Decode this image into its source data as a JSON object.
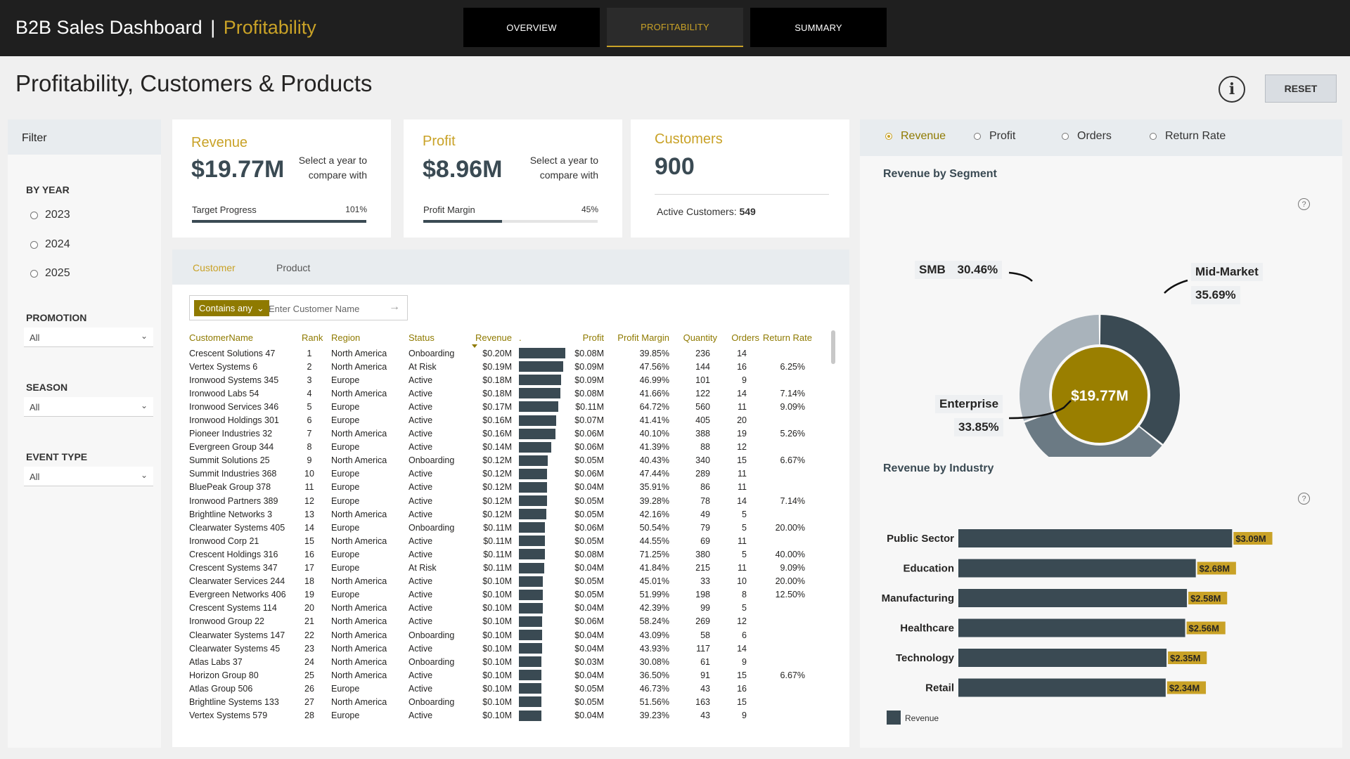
{
  "header": {
    "app_title": "B2B Sales Dashboard",
    "separator": "|",
    "page_name": "Profitability",
    "tabs": [
      {
        "label": "OVERVIEW",
        "active": false
      },
      {
        "label": "PROFITABILITY",
        "active": true
      },
      {
        "label": "SUMMARY",
        "active": false
      }
    ]
  },
  "page": {
    "title": "Profitability, Customers & Products",
    "info_icon": "i",
    "reset_label": "RESET"
  },
  "filters": {
    "title": "Filter",
    "year_label": "BY YEAR",
    "years": [
      "2023",
      "2024",
      "2025"
    ],
    "promotion_label": "PROMOTION",
    "promotion_value": "All",
    "season_label": "SEASON",
    "season_value": "All",
    "event_label": "EVENT TYPE",
    "event_value": "All"
  },
  "kpis": {
    "revenue": {
      "title": "Revenue",
      "value": "$19.77M",
      "note": "Select a year to compare with",
      "sub_label": "Target Progress",
      "sub_value": "101%",
      "progress": 1.0
    },
    "profit": {
      "title": "Profit",
      "value": "$8.96M",
      "note": "Select a year to compare with",
      "sub_label": "Profit Margin",
      "sub_value": "45%",
      "progress": 0.45
    },
    "customers": {
      "title": "Customers",
      "value": "900",
      "active_label": "Active Customers:",
      "active_value": "549"
    }
  },
  "table": {
    "tabs": [
      "Customer",
      "Product"
    ],
    "active_tab": "Customer",
    "search": {
      "mode_label": "Contains any",
      "placeholder": "Enter Customer Name"
    },
    "columns": [
      "CustomerName",
      "Rank",
      "Region",
      "Status",
      "Revenue",
      ".",
      "Profit",
      "Profit Margin",
      "Quantity",
      "Orders",
      "Return Rate"
    ],
    "bar_max": 0.2,
    "rows": [
      {
        "name": "Crescent Solutions 47",
        "rank": "1",
        "region": "North America",
        "status": "Onboarding",
        "revenue": "$0.20M",
        "rev_num": 0.2,
        "profit": "$0.08M",
        "margin": "39.85%",
        "quantity": "236",
        "orders": "14",
        "return_rate": ""
      },
      {
        "name": "Vertex Systems 6",
        "rank": "2",
        "region": "North America",
        "status": "At Risk",
        "revenue": "$0.19M",
        "rev_num": 0.19,
        "profit": "$0.09M",
        "margin": "47.56%",
        "quantity": "144",
        "orders": "16",
        "return_rate": "6.25%"
      },
      {
        "name": "Ironwood Systems 345",
        "rank": "3",
        "region": "Europe",
        "status": "Active",
        "revenue": "$0.18M",
        "rev_num": 0.182,
        "profit": "$0.09M",
        "margin": "46.99%",
        "quantity": "101",
        "orders": "9",
        "return_rate": ""
      },
      {
        "name": "Ironwood Labs 54",
        "rank": "4",
        "region": "North America",
        "status": "Active",
        "revenue": "$0.18M",
        "rev_num": 0.178,
        "profit": "$0.08M",
        "margin": "41.66%",
        "quantity": "122",
        "orders": "14",
        "return_rate": "7.14%"
      },
      {
        "name": "Ironwood Services 346",
        "rank": "5",
        "region": "Europe",
        "status": "Active",
        "revenue": "$0.17M",
        "rev_num": 0.17,
        "profit": "$0.11M",
        "margin": "64.72%",
        "quantity": "560",
        "orders": "11",
        "return_rate": "9.09%"
      },
      {
        "name": "Ironwood Holdings 301",
        "rank": "6",
        "region": "Europe",
        "status": "Active",
        "revenue": "$0.16M",
        "rev_num": 0.162,
        "profit": "$0.07M",
        "margin": "41.41%",
        "quantity": "405",
        "orders": "20",
        "return_rate": ""
      },
      {
        "name": "Pioneer Industries 32",
        "rank": "7",
        "region": "North America",
        "status": "Active",
        "revenue": "$0.16M",
        "rev_num": 0.158,
        "profit": "$0.06M",
        "margin": "40.10%",
        "quantity": "388",
        "orders": "19",
        "return_rate": "5.26%"
      },
      {
        "name": "Evergreen Group 344",
        "rank": "8",
        "region": "Europe",
        "status": "Active",
        "revenue": "$0.14M",
        "rev_num": 0.14,
        "profit": "$0.06M",
        "margin": "41.39%",
        "quantity": "88",
        "orders": "12",
        "return_rate": ""
      },
      {
        "name": "Summit Solutions 25",
        "rank": "9",
        "region": "North America",
        "status": "Onboarding",
        "revenue": "$0.12M",
        "rev_num": 0.123,
        "profit": "$0.05M",
        "margin": "40.43%",
        "quantity": "340",
        "orders": "15",
        "return_rate": "6.67%"
      },
      {
        "name": "Summit Industries 368",
        "rank": "10",
        "region": "Europe",
        "status": "Active",
        "revenue": "$0.12M",
        "rev_num": 0.122,
        "profit": "$0.06M",
        "margin": "47.44%",
        "quantity": "289",
        "orders": "11",
        "return_rate": ""
      },
      {
        "name": "BluePeak Group 378",
        "rank": "11",
        "region": "Europe",
        "status": "Active",
        "revenue": "$0.12M",
        "rev_num": 0.121,
        "profit": "$0.04M",
        "margin": "35.91%",
        "quantity": "86",
        "orders": "11",
        "return_rate": ""
      },
      {
        "name": "Ironwood Partners 389",
        "rank": "12",
        "region": "Europe",
        "status": "Active",
        "revenue": "$0.12M",
        "rev_num": 0.12,
        "profit": "$0.05M",
        "margin": "39.28%",
        "quantity": "78",
        "orders": "14",
        "return_rate": "7.14%"
      },
      {
        "name": "Brightline Networks 3",
        "rank": "13",
        "region": "North America",
        "status": "Active",
        "revenue": "$0.12M",
        "rev_num": 0.118,
        "profit": "$0.05M",
        "margin": "42.16%",
        "quantity": "49",
        "orders": "5",
        "return_rate": ""
      },
      {
        "name": "Clearwater Systems 405",
        "rank": "14",
        "region": "Europe",
        "status": "Onboarding",
        "revenue": "$0.11M",
        "rev_num": 0.113,
        "profit": "$0.06M",
        "margin": "50.54%",
        "quantity": "79",
        "orders": "5",
        "return_rate": "20.00%"
      },
      {
        "name": "Ironwood Corp 21",
        "rank": "15",
        "region": "North America",
        "status": "Active",
        "revenue": "$0.11M",
        "rev_num": 0.112,
        "profit": "$0.05M",
        "margin": "44.55%",
        "quantity": "69",
        "orders": "11",
        "return_rate": ""
      },
      {
        "name": "Crescent Holdings 316",
        "rank": "16",
        "region": "Europe",
        "status": "Active",
        "revenue": "$0.11M",
        "rev_num": 0.111,
        "profit": "$0.08M",
        "margin": "71.25%",
        "quantity": "380",
        "orders": "5",
        "return_rate": "40.00%"
      },
      {
        "name": "Crescent Systems 347",
        "rank": "17",
        "region": "Europe",
        "status": "At Risk",
        "revenue": "$0.11M",
        "rev_num": 0.108,
        "profit": "$0.04M",
        "margin": "41.84%",
        "quantity": "215",
        "orders": "11",
        "return_rate": "9.09%"
      },
      {
        "name": "Clearwater Services 244",
        "rank": "18",
        "region": "North America",
        "status": "Active",
        "revenue": "$0.10M",
        "rev_num": 0.104,
        "profit": "$0.05M",
        "margin": "45.01%",
        "quantity": "33",
        "orders": "10",
        "return_rate": "20.00%"
      },
      {
        "name": "Evergreen Networks 406",
        "rank": "19",
        "region": "Europe",
        "status": "Active",
        "revenue": "$0.10M",
        "rev_num": 0.103,
        "profit": "$0.05M",
        "margin": "51.99%",
        "quantity": "198",
        "orders": "8",
        "return_rate": "12.50%"
      },
      {
        "name": "Crescent Systems 114",
        "rank": "20",
        "region": "North America",
        "status": "Active",
        "revenue": "$0.10M",
        "rev_num": 0.102,
        "profit": "$0.04M",
        "margin": "42.39%",
        "quantity": "99",
        "orders": "5",
        "return_rate": ""
      },
      {
        "name": "Ironwood Group 22",
        "rank": "21",
        "region": "North America",
        "status": "Active",
        "revenue": "$0.10M",
        "rev_num": 0.101,
        "profit": "$0.06M",
        "margin": "58.24%",
        "quantity": "269",
        "orders": "12",
        "return_rate": ""
      },
      {
        "name": "Clearwater Systems 147",
        "rank": "22",
        "region": "North America",
        "status": "Onboarding",
        "revenue": "$0.10M",
        "rev_num": 0.1,
        "profit": "$0.04M",
        "margin": "43.09%",
        "quantity": "58",
        "orders": "6",
        "return_rate": ""
      },
      {
        "name": "Clearwater Systems 45",
        "rank": "23",
        "region": "North America",
        "status": "Active",
        "revenue": "$0.10M",
        "rev_num": 0.099,
        "profit": "$0.04M",
        "margin": "43.93%",
        "quantity": "117",
        "orders": "14",
        "return_rate": ""
      },
      {
        "name": "Atlas Labs 37",
        "rank": "24",
        "region": "North America",
        "status": "Onboarding",
        "revenue": "$0.10M",
        "rev_num": 0.098,
        "profit": "$0.03M",
        "margin": "30.08%",
        "quantity": "61",
        "orders": "9",
        "return_rate": ""
      },
      {
        "name": "Horizon Group 80",
        "rank": "25",
        "region": "North America",
        "status": "Active",
        "revenue": "$0.10M",
        "rev_num": 0.097,
        "profit": "$0.04M",
        "margin": "36.50%",
        "quantity": "91",
        "orders": "15",
        "return_rate": "6.67%"
      },
      {
        "name": "Atlas Group 506",
        "rank": "26",
        "region": "Europe",
        "status": "Active",
        "revenue": "$0.10M",
        "rev_num": 0.097,
        "profit": "$0.05M",
        "margin": "46.73%",
        "quantity": "43",
        "orders": "16",
        "return_rate": ""
      },
      {
        "name": "Brightline Systems 133",
        "rank": "27",
        "region": "North America",
        "status": "Onboarding",
        "revenue": "$0.10M",
        "rev_num": 0.096,
        "profit": "$0.05M",
        "margin": "51.56%",
        "quantity": "163",
        "orders": "15",
        "return_rate": ""
      },
      {
        "name": "Vertex Systems 579",
        "rank": "28",
        "region": "Europe",
        "status": "Active",
        "revenue": "$0.10M",
        "rev_num": 0.096,
        "profit": "$0.04M",
        "margin": "39.23%",
        "quantity": "43",
        "orders": "9",
        "return_rate": ""
      }
    ]
  },
  "metrics": {
    "options": [
      "Revenue",
      "Profit",
      "Orders",
      "Return Rate"
    ],
    "active": "Revenue"
  },
  "colors": {
    "accent": "#c9a227",
    "bar": "#3a4a53",
    "donut_smb": "#a9b3bb",
    "donut_mid_market": "#3a4a53",
    "donut_enterprise": "#6b7a84"
  },
  "chart_data": [
    {
      "type": "pie",
      "title": "Revenue by Segment",
      "center_label": "$19.77M",
      "slices": [
        {
          "label": "Mid-Market",
          "value": 35.69,
          "display": "35.69%"
        },
        {
          "label": "Enterprise",
          "value": 33.85,
          "display": "33.85%"
        },
        {
          "label": "SMB",
          "value": 30.46,
          "display": "30.46%"
        }
      ]
    },
    {
      "type": "bar",
      "orientation": "horizontal",
      "title": "Revenue by Industry",
      "categories": [
        "Public Sector",
        "Education",
        "Manufacturing",
        "Healthcare",
        "Technology",
        "Retail"
      ],
      "values": [
        3.09,
        2.68,
        2.58,
        2.56,
        2.35,
        2.34
      ],
      "data_labels": [
        "$3.09M",
        "$2.68M",
        "$2.58M",
        "$2.56M",
        "$2.35M",
        "$2.34M"
      ],
      "xlim": [
        0,
        3.0
      ],
      "ticks": [
        "$0.00",
        "$1.00M",
        "$2.00M",
        "$3.00M"
      ],
      "tick_values": [
        0,
        1,
        2,
        3
      ],
      "legend": "Revenue",
      "legend_position": "bottom-left"
    }
  ]
}
